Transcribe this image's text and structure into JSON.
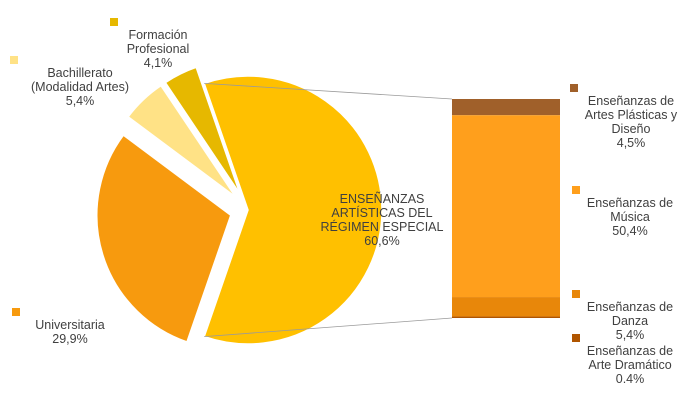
{
  "chart_data": [
    {
      "type": "pie",
      "slices": [
        {
          "label": "ENSEÑANZAS ARTÍSTICAS DEL RÉGIMEN ESPECIAL",
          "value": 60.6,
          "value_label": "60,6%",
          "color": "#FFC000",
          "exploded": false
        },
        {
          "label": "Universitaria",
          "value": 29.9,
          "value_label": "29,9%",
          "color": "#F79A0E",
          "exploded": true
        },
        {
          "label": "Bachillerato (Modalidad Artes)",
          "value": 5.4,
          "value_label": "5,4%",
          "color": "#FFE286",
          "exploded": true
        },
        {
          "label": "Formación Profesional",
          "value": 4.1,
          "value_label": "4,1%",
          "color": "#E6B800",
          "exploded": true
        }
      ]
    },
    {
      "type": "bar",
      "stacked": true,
      "series": [
        {
          "label": "Enseñanzas de Artes Plásticas y Diseño",
          "value": 4.5,
          "value_label": "4,5%",
          "color": "#A0602A"
        },
        {
          "label": "Enseñanzas de Música",
          "value": 50.4,
          "value_label": "50,4%",
          "color": "#FF9F1C"
        },
        {
          "label": "Enseñanzas de Danza",
          "value": 5.4,
          "value_label": "5,4%",
          "color": "#E8870A"
        },
        {
          "label": "Enseñanzas de Arte Dramático",
          "value": 0.4,
          "value_label": "0.4%",
          "color": "#B05500"
        }
      ]
    }
  ]
}
